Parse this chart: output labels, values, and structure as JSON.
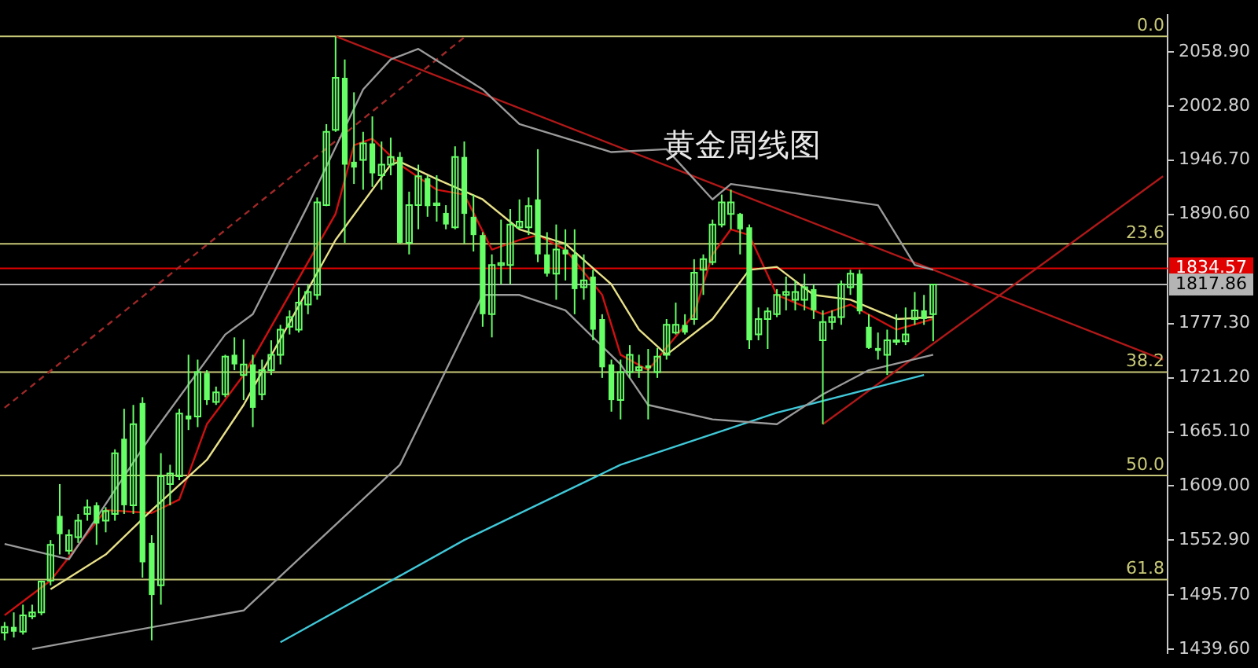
{
  "chart_data": {
    "type": "candlestick",
    "title": "黄金周线图",
    "color": "#66ff66",
    "categories": [
      null,
      null,
      null,
      null,
      null,
      null,
      null,
      null,
      null,
      null,
      null,
      null,
      null,
      null,
      null,
      null,
      null,
      null,
      null,
      null,
      null,
      null,
      null,
      null,
      null,
      null,
      null,
      null,
      null,
      null,
      null,
      null,
      null,
      null,
      null,
      null,
      null,
      null,
      null,
      null,
      null,
      null,
      null,
      null,
      null,
      null,
      null,
      null,
      null,
      null,
      null,
      null,
      null,
      null,
      null,
      null,
      null,
      null,
      null,
      null,
      null,
      null,
      null,
      null,
      null,
      null,
      null,
      null,
      null,
      null,
      null,
      null,
      null,
      null,
      null,
      null,
      null,
      null,
      null,
      null,
      null,
      null,
      null,
      null,
      null,
      null,
      null,
      null,
      null,
      null,
      null,
      null,
      null,
      null,
      null,
      null,
      null,
      null,
      null,
      null,
      null,
      null,
      null,
      null,
      null,
      null,
      null,
      null,
      null,
      null,
      null,
      null,
      null,
      null,
      null,
      null,
      null,
      null,
      null,
      null,
      null,
      null,
      null,
      null,
      null,
      null,
      null
    ],
    "ohlc": [
      [
        1457,
        1468,
        1449,
        1463
      ],
      [
        1463,
        1478,
        1452,
        1458
      ],
      [
        1458,
        1486,
        1455,
        1475
      ],
      [
        1474,
        1486,
        1471,
        1478
      ],
      [
        1478,
        1511,
        1475,
        1510
      ],
      [
        1511,
        1553,
        1506,
        1548
      ],
      [
        1578,
        1611,
        1538,
        1559
      ],
      [
        1542,
        1564,
        1538,
        1558
      ],
      [
        1556,
        1580,
        1550,
        1573
      ],
      [
        1580,
        1595,
        1573,
        1587
      ],
      [
        1589,
        1592,
        1548,
        1570
      ],
      [
        1573,
        1587,
        1561,
        1583
      ],
      [
        1580,
        1647,
        1573,
        1643
      ],
      [
        1658,
        1689,
        1580,
        1589
      ],
      [
        1589,
        1693,
        1580,
        1673
      ],
      [
        1695,
        1701,
        1514,
        1530
      ],
      [
        1550,
        1558,
        1449,
        1496
      ],
      [
        1506,
        1643,
        1486,
        1619
      ],
      [
        1611,
        1631,
        1589,
        1622
      ],
      [
        1619,
        1689,
        1615,
        1684
      ],
      [
        1682,
        1745,
        1667,
        1678
      ],
      [
        1681,
        1740,
        1670,
        1727
      ],
      [
        1726,
        1729,
        1693,
        1698
      ],
      [
        1696,
        1712,
        1693,
        1706
      ],
      [
        1704,
        1745,
        1701,
        1743
      ],
      [
        1745,
        1763,
        1729,
        1735
      ],
      [
        1724,
        1761,
        1698,
        1735
      ],
      [
        1735,
        1745,
        1670,
        1690
      ],
      [
        1704,
        1740,
        1698,
        1729
      ],
      [
        1729,
        1760,
        1724,
        1745
      ],
      [
        1745,
        1776,
        1735,
        1771
      ],
      [
        1774,
        1791,
        1766,
        1784
      ],
      [
        1771,
        1815,
        1768,
        1799
      ],
      [
        1797,
        1818,
        1787,
        1810
      ],
      [
        1807,
        1908,
        1802,
        1903
      ],
      [
        1900,
        1984,
        1899,
        1976
      ],
      [
        1978,
        2075,
        1976,
        2032
      ],
      [
        2032,
        2051,
        1861,
        1942
      ],
      [
        1945,
        2017,
        1922,
        1939
      ],
      [
        1947,
        1976,
        1916,
        1964
      ],
      [
        1964,
        1992,
        1919,
        1933
      ],
      [
        1931,
        1966,
        1916,
        1942
      ],
      [
        1942,
        1970,
        1931,
        1950
      ],
      [
        1950,
        1955,
        1860,
        1861
      ],
      [
        1861,
        1914,
        1849,
        1900
      ],
      [
        1900,
        1942,
        1875,
        1930
      ],
      [
        1928,
        1931,
        1888,
        1899
      ],
      [
        1900,
        1931,
        1883,
        1902
      ],
      [
        1892,
        1900,
        1875,
        1880
      ],
      [
        1877,
        1961,
        1875,
        1950
      ],
      [
        1950,
        1966,
        1860,
        1891
      ],
      [
        1888,
        1911,
        1852,
        1869
      ],
      [
        1869,
        1872,
        1774,
        1787
      ],
      [
        1787,
        1849,
        1763,
        1838
      ],
      [
        1838,
        1885,
        1818,
        1840
      ],
      [
        1838,
        1896,
        1818,
        1880
      ],
      [
        1877,
        1906,
        1875,
        1883
      ],
      [
        1877,
        1908,
        1869,
        1899
      ],
      [
        1906,
        1958,
        1841,
        1849
      ],
      [
        1849,
        1872,
        1826,
        1829
      ],
      [
        1829,
        1880,
        1802,
        1854
      ],
      [
        1854,
        1875,
        1822,
        1849
      ],
      [
        1849,
        1875,
        1787,
        1813
      ],
      [
        1815,
        1849,
        1802,
        1822
      ],
      [
        1826,
        1833,
        1760,
        1771
      ],
      [
        1782,
        1787,
        1721,
        1732
      ],
      [
        1735,
        1740,
        1686,
        1698
      ],
      [
        1698,
        1740,
        1678,
        1727
      ],
      [
        1727,
        1755,
        1721,
        1745
      ],
      [
        1729,
        1745,
        1721,
        1732
      ],
      [
        1734,
        1751,
        1678,
        1731
      ],
      [
        1727,
        1752,
        1721,
        1743
      ],
      [
        1745,
        1782,
        1740,
        1776
      ],
      [
        1768,
        1799,
        1766,
        1776
      ],
      [
        1776,
        1787,
        1766,
        1768
      ],
      [
        1782,
        1844,
        1776,
        1830
      ],
      [
        1833,
        1849,
        1807,
        1844
      ],
      [
        1841,
        1885,
        1838,
        1880
      ],
      [
        1880,
        1911,
        1877,
        1903
      ],
      [
        1891,
        1916,
        1875,
        1903
      ],
      [
        1891,
        1892,
        1849,
        1875
      ],
      [
        1877,
        1880,
        1751,
        1760
      ],
      [
        1766,
        1794,
        1760,
        1782
      ],
      [
        1782,
        1794,
        1751,
        1790
      ],
      [
        1787,
        1813,
        1784,
        1807
      ],
      [
        1807,
        1826,
        1791,
        1810
      ],
      [
        1802,
        1822,
        1791,
        1810
      ],
      [
        1802,
        1829,
        1791,
        1815
      ],
      [
        1813,
        1818,
        1782,
        1791
      ],
      [
        1760,
        1791,
        1673,
        1779
      ],
      [
        1779,
        1791,
        1771,
        1784
      ],
      [
        1784,
        1822,
        1776,
        1818
      ],
      [
        1815,
        1833,
        1807,
        1829
      ],
      [
        1829,
        1833,
        1787,
        1790
      ],
      [
        1774,
        1787,
        1751,
        1752
      ],
      [
        1752,
        1768,
        1740,
        1749
      ],
      [
        1745,
        1771,
        1724,
        1760
      ],
      [
        1759,
        1787,
        1755,
        1760
      ],
      [
        1759,
        1794,
        1755,
        1766
      ],
      [
        1782,
        1810,
        1776,
        1791
      ],
      [
        1791,
        1807,
        1776,
        1782
      ],
      [
        1787,
        1818,
        1759,
        1817.86
      ],
      null,
      null,
      null,
      null,
      null,
      null,
      null,
      null,
      null,
      null,
      null,
      null,
      null,
      null,
      null,
      null,
      null,
      null,
      null,
      null,
      null,
      null,
      null,
      null,
      null
    ],
    "series": [
      {
        "type": "line",
        "color": "#9a9a9a",
        "values": [
          1549,
          null,
          null,
          null,
          null,
          null,
          null,
          1533,
          null,
          null,
          null,
          null,
          null,
          null,
          null,
          null,
          1662,
          null,
          null,
          null,
          null,
          null,
          null,
          null,
          1766,
          null,
          null,
          1787,
          null,
          null,
          null,
          null,
          null,
          1900,
          null,
          null,
          null,
          null,
          null,
          2020,
          null,
          null,
          2051,
          null,
          null,
          2062,
          null,
          null,
          null,
          null,
          null,
          null,
          2020,
          null,
          null,
          null,
          1984,
          null,
          null,
          null,
          null,
          null,
          null,
          null,
          null,
          null,
          1955,
          null,
          null,
          null,
          null,
          null,
          1958,
          null,
          null,
          null,
          null,
          1906,
          null,
          1922,
          null,
          null,
          null,
          null,
          null,
          null,
          null,
          1911,
          null,
          null,
          null,
          null,
          null,
          null,
          null,
          1900,
          null,
          null,
          null,
          1838,
          null,
          1833,
          null,
          null,
          null,
          null,
          null,
          null,
          null,
          null,
          null,
          null,
          null,
          null,
          null,
          null,
          null,
          null,
          null,
          null,
          null,
          null,
          null,
          null,
          null,
          null,
          null
        ]
      },
      {
        "type": "line",
        "color": "#9a9a9a",
        "values": [
          null,
          null,
          null,
          1440,
          null,
          null,
          null,
          null,
          null,
          null,
          null,
          null,
          null,
          null,
          null,
          null,
          null,
          null,
          null,
          null,
          null,
          null,
          null,
          null,
          null,
          null,
          1480,
          null,
          null,
          null,
          null,
          null,
          null,
          null,
          null,
          null,
          null,
          null,
          null,
          null,
          null,
          null,
          null,
          1631,
          null,
          null,
          null,
          null,
          null,
          null,
          null,
          null,
          1807,
          null,
          null,
          null,
          1807,
          null,
          null,
          null,
          null,
          1791,
          null,
          null,
          null,
          null,
          null,
          1735,
          null,
          null,
          1693,
          null,
          null,
          null,
          null,
          null,
          null,
          1678,
          null,
          null,
          null,
          null,
          null,
          null,
          1673,
          null,
          null,
          null,
          null,
          1704,
          null,
          null,
          null,
          null,
          1729,
          null,
          null,
          null,
          null,
          null,
          null,
          1745,
          null,
          null,
          null,
          null,
          null,
          null,
          null,
          null,
          null,
          null,
          null,
          null,
          null,
          null,
          null,
          null,
          null,
          null,
          null,
          null,
          null,
          null,
          null,
          null,
          null
        ]
      },
      {
        "type": "line",
        "color": "#e8e088",
        "values": [
          null,
          null,
          null,
          null,
          null,
          1502,
          null,
          null,
          null,
          null,
          null,
          1538,
          null,
          null,
          null,
          null,
          1584,
          null,
          null,
          null,
          null,
          null,
          1636,
          null,
          null,
          null,
          1693,
          null,
          null,
          null,
          null,
          null,
          null,
          null,
          null,
          null,
          1864,
          null,
          null,
          null,
          null,
          null,
          1942,
          1945,
          null,
          null,
          null,
          1927,
          null,
          null,
          null,
          null,
          1906,
          null,
          null,
          null,
          1875,
          null,
          null,
          null,
          null,
          1860,
          null,
          null,
          null,
          null,
          1818,
          null,
          null,
          1771,
          null,
          null,
          1745,
          null,
          null,
          null,
          null,
          1782,
          null,
          null,
          null,
          1833,
          null,
          null,
          1836,
          null,
          null,
          null,
          1807,
          null,
          null,
          null,
          1802,
          null,
          null,
          null,
          null,
          1782,
          null,
          null,
          null,
          1784,
          null,
          null,
          null,
          null,
          null,
          null,
          null,
          null,
          null,
          null,
          null,
          null,
          null,
          null,
          null,
          null,
          null,
          null,
          null,
          null,
          null,
          null,
          null,
          null,
          null
        ]
      },
      {
        "type": "line",
        "color": "#d01010",
        "values": [
          1475,
          null,
          null,
          null,
          null,
          1511,
          null,
          null,
          null,
          null,
          null,
          1584,
          null,
          null,
          null,
          null,
          1581,
          null,
          null,
          1595,
          null,
          null,
          1673,
          null,
          null,
          null,
          1724,
          null,
          null,
          null,
          null,
          null,
          null,
          null,
          null,
          null,
          1891,
          null,
          1962,
          null,
          1969,
          null,
          null,
          1942,
          null,
          null,
          null,
          1916,
          null,
          null,
          1911,
          null,
          null,
          1854,
          null,
          null,
          1864,
          null,
          1869,
          null,
          null,
          1854,
          null,
          null,
          null,
          1807,
          null,
          1745,
          null,
          null,
          1729,
          null,
          null,
          null,
          null,
          1787,
          null,
          1849,
          null,
          1875,
          null,
          1869,
          null,
          null,
          1807,
          null,
          null,
          null,
          null,
          1787,
          null,
          null,
          1797,
          null,
          null,
          null,
          null,
          1771,
          null,
          null,
          null,
          1782,
          null,
          null,
          null,
          null,
          null,
          null,
          null,
          null,
          null,
          null,
          null,
          null,
          null,
          null,
          null,
          null,
          null,
          null,
          null,
          null,
          null,
          null,
          null,
          null,
          null
        ]
      },
      {
        "type": "line",
        "color": "#40c8d8",
        "values": [
          null,
          null,
          null,
          null,
          null,
          null,
          null,
          null,
          null,
          null,
          null,
          null,
          null,
          null,
          null,
          null,
          null,
          null,
          null,
          null,
          null,
          null,
          null,
          null,
          null,
          null,
          null,
          null,
          null,
          null,
          1447,
          null,
          null,
          null,
          null,
          null,
          null,
          null,
          null,
          null,
          null,
          null,
          null,
          null,
          null,
          null,
          null,
          null,
          null,
          null,
          1553,
          null,
          null,
          null,
          null,
          null,
          null,
          null,
          null,
          null,
          null,
          null,
          null,
          null,
          null,
          null,
          null,
          1631,
          null,
          null,
          null,
          null,
          null,
          null,
          null,
          null,
          null,
          null,
          null,
          null,
          null,
          null,
          null,
          null,
          1685,
          null,
          null,
          null,
          null,
          null,
          null,
          null,
          null,
          null,
          null,
          null,
          null,
          null,
          null,
          null,
          1724,
          null,
          null,
          null,
          null,
          null,
          null,
          null,
          null,
          null,
          null,
          null,
          null,
          null,
          null,
          null,
          null,
          null,
          null,
          null,
          null,
          null,
          null,
          null,
          null,
          null,
          null
        ]
      },
      {
        "type": "line",
        "color": "#b01818",
        "values": [
          null,
          null,
          null,
          null,
          null,
          null,
          null,
          null,
          null,
          null,
          null,
          null,
          null,
          null,
          null,
          null,
          null,
          null,
          null,
          null,
          null,
          null,
          null,
          null,
          null,
          null,
          null,
          null,
          null,
          null,
          null,
          null,
          null,
          null,
          null,
          null,
          2075,
          null,
          null,
          null,
          null,
          null,
          null,
          null,
          null,
          null,
          null,
          null,
          null,
          null,
          null,
          null,
          null,
          null,
          null,
          null,
          null,
          null,
          null,
          null,
          null,
          null,
          null,
          null,
          null,
          null,
          null,
          null,
          null,
          null,
          null,
          null,
          null,
          null,
          null,
          null,
          null,
          null,
          null,
          null,
          null,
          null,
          null,
          null,
          null,
          null,
          null,
          null,
          null,
          null,
          null,
          null,
          null,
          null,
          null,
          null,
          null,
          null,
          null,
          null,
          null,
          null,
          null,
          null,
          null,
          null,
          null,
          null,
          null,
          null,
          null,
          null,
          null,
          null,
          null,
          null,
          null,
          null,
          null,
          null,
          null,
          null,
          null,
          null,
          null,
          null,
          1740
        ]
      },
      {
        "type": "line",
        "color": "#b01818",
        "values": [
          null,
          null,
          null,
          null,
          null,
          null,
          null,
          null,
          null,
          null,
          null,
          null,
          null,
          null,
          null,
          null,
          null,
          null,
          null,
          null,
          null,
          null,
          null,
          null,
          null,
          null,
          null,
          null,
          null,
          null,
          null,
          null,
          null,
          null,
          null,
          null,
          null,
          null,
          null,
          null,
          null,
          null,
          null,
          null,
          null,
          null,
          null,
          null,
          null,
          null,
          null,
          null,
          null,
          null,
          null,
          null,
          null,
          null,
          null,
          null,
          null,
          null,
          null,
          null,
          null,
          null,
          null,
          null,
          null,
          null,
          null,
          null,
          null,
          null,
          null,
          null,
          null,
          null,
          null,
          null,
          null,
          null,
          null,
          null,
          null,
          null,
          null,
          null,
          null,
          1673,
          null,
          null,
          null,
          null,
          null,
          null,
          null,
          null,
          null,
          null,
          null,
          null,
          null,
          null,
          null,
          null,
          null,
          null,
          null,
          null,
          null,
          null,
          null,
          null,
          null,
          null,
          null,
          null,
          null,
          null,
          null,
          null,
          null,
          null,
          null,
          null,
          1930
        ]
      },
      {
        "type": "line",
        "color": "#a02828",
        "line_style": "dashed",
        "values": [
          1690,
          null,
          null,
          null,
          null,
          null,
          null,
          null,
          null,
          null,
          null,
          null,
          null,
          null,
          null,
          null,
          null,
          null,
          null,
          null,
          null,
          null,
          null,
          null,
          null,
          null,
          null,
          null,
          null,
          null,
          null,
          null,
          null,
          null,
          null,
          null,
          null,
          null,
          null,
          null,
          null,
          null,
          null,
          null,
          null,
          null,
          null,
          null,
          null,
          null,
          2074,
          null,
          null,
          null,
          null,
          null,
          null,
          null,
          null,
          null,
          null,
          null,
          null,
          null,
          null,
          null,
          null,
          null,
          null,
          null,
          null,
          null,
          null,
          null,
          null,
          null,
          null,
          null,
          null,
          null,
          null,
          null,
          null,
          null,
          null,
          null,
          null,
          null,
          null,
          null,
          null,
          null,
          null,
          null,
          null,
          null,
          null,
          null,
          null,
          null,
          null,
          null,
          null,
          null,
          null,
          null,
          null,
          null,
          null,
          null,
          null,
          null,
          null,
          null,
          null,
          null,
          null,
          null,
          null,
          null,
          null,
          null,
          null,
          null,
          null,
          null,
          null
        ]
      }
    ],
    "ylim": [
      1436,
      2097
    ],
    "yticks": [
      {
        "value": 1439.6,
        "label": "1439.60"
      },
      {
        "value": 1495.7,
        "label": "1495.70"
      },
      {
        "value": 1552.9,
        "label": "1552.90"
      },
      {
        "value": 1609,
        "label": "1609.00"
      },
      {
        "value": 1665.1,
        "label": "1665.10"
      },
      {
        "value": 1721.2,
        "label": "1721.20"
      },
      {
        "value": 1777.3,
        "label": "1777.30"
      },
      {
        "value": 1890.6,
        "label": "1890.60"
      },
      {
        "value": 1946.7,
        "label": "1946.70"
      },
      {
        "value": 2002.8,
        "label": "2002.80"
      },
      {
        "value": 2058.9,
        "label": "2058.90"
      }
    ],
    "tick_labels": "y",
    "annotations": [
      {
        "text": "0.0",
        "y": 2075
      },
      {
        "text": "23.6",
        "y": 1860
      },
      {
        "text": "38.2",
        "y": 1727
      },
      {
        "text": "50.0",
        "y": 1620
      },
      {
        "text": "61.8",
        "y": 1512
      }
    ],
    "ref_lines": [
      {
        "axis": "y",
        "value": 2075,
        "color": "#c8c878"
      },
      {
        "axis": "y",
        "value": 1860,
        "color": "#c8c878"
      },
      {
        "axis": "y",
        "value": 1727,
        "color": "#c8c878"
      },
      {
        "axis": "y",
        "value": 1620,
        "color": "#c8c878"
      },
      {
        "axis": "y",
        "value": 1512,
        "color": "#c8c878"
      },
      {
        "axis": "y",
        "value": 1834.57,
        "label": "1834.57",
        "color": "#e00000"
      },
      {
        "axis": "y",
        "value": 1817.86,
        "label": "1817.86",
        "color": "#b4b4b4"
      }
    ]
  }
}
